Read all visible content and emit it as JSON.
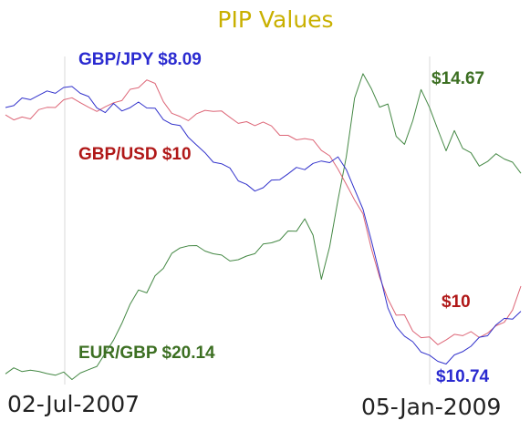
{
  "chart_data": {
    "type": "line",
    "title": "PIP Values",
    "xlabel": "",
    "ylabel": "",
    "x_ticks": [
      "02-Jul-2007",
      "05-Jan-2009"
    ],
    "grid": false,
    "legend": "none",
    "series": [
      {
        "name": "GBP/JPY",
        "end_label": "GBP/JPY $8.09",
        "low_label": "$10.74",
        "color": "#3333cc",
        "label_color": "#2a2ad0",
        "values": [
          118,
          114,
          110,
          108,
          104,
          102,
          100,
          97,
          96,
          100,
          108,
          118,
          122,
          116,
          120,
          118,
          114,
          116,
          120,
          132,
          134,
          140,
          150,
          158,
          170,
          176,
          180,
          186,
          196,
          204,
          210,
          204,
          200,
          196,
          190,
          186,
          184,
          180,
          178,
          176,
          174,
          186,
          206,
          232,
          262,
          300,
          340,
          356,
          370,
          376,
          384,
          392,
          396,
          398,
          392,
          384,
          380,
          372,
          366,
          358,
          350,
          348,
          344
        ]
      },
      {
        "name": "GBP/USD",
        "end_label": "GBP/USD $10",
        "low_label": "$10",
        "color": "#dd6677",
        "label_color": "#b01818",
        "values": [
          124,
          132,
          130,
          128,
          122,
          118,
          116,
          112,
          106,
          112,
          120,
          120,
          118,
          114,
          108,
          100,
          96,
          86,
          94,
          110,
          124,
          130,
          130,
          126,
          122,
          120,
          124,
          128,
          134,
          136,
          136,
          134,
          140,
          146,
          150,
          154,
          150,
          156,
          164,
          170,
          188,
          200,
          220,
          236,
          270,
          306,
          328,
          344,
          348,
          362,
          370,
          372,
          376,
          374,
          368,
          366,
          366,
          370,
          364,
          360,
          352,
          340,
          316
        ]
      },
      {
        "name": "EUR/GBP",
        "end_label": "EUR/GBP $20.14",
        "high_label": "$14.67",
        "color": "#448844",
        "label_color": "#3c6f22",
        "values": [
          408,
          406,
          407,
          405,
          410,
          408,
          412,
          410,
          414,
          411,
          406,
          400,
          390,
          372,
          354,
          336,
          316,
          322,
          304,
          292,
          280,
          272,
          268,
          272,
          274,
          278,
          282,
          284,
          286,
          282,
          276,
          270,
          266,
          262,
          256,
          252,
          240,
          260,
          304,
          272,
          220,
          170,
          110,
          80,
          96,
          120,
          112,
          150,
          160,
          130,
          100,
          118,
          140,
          168,
          142,
          162,
          170,
          180,
          178,
          170,
          172,
          180,
          190
        ]
      }
    ]
  }
}
